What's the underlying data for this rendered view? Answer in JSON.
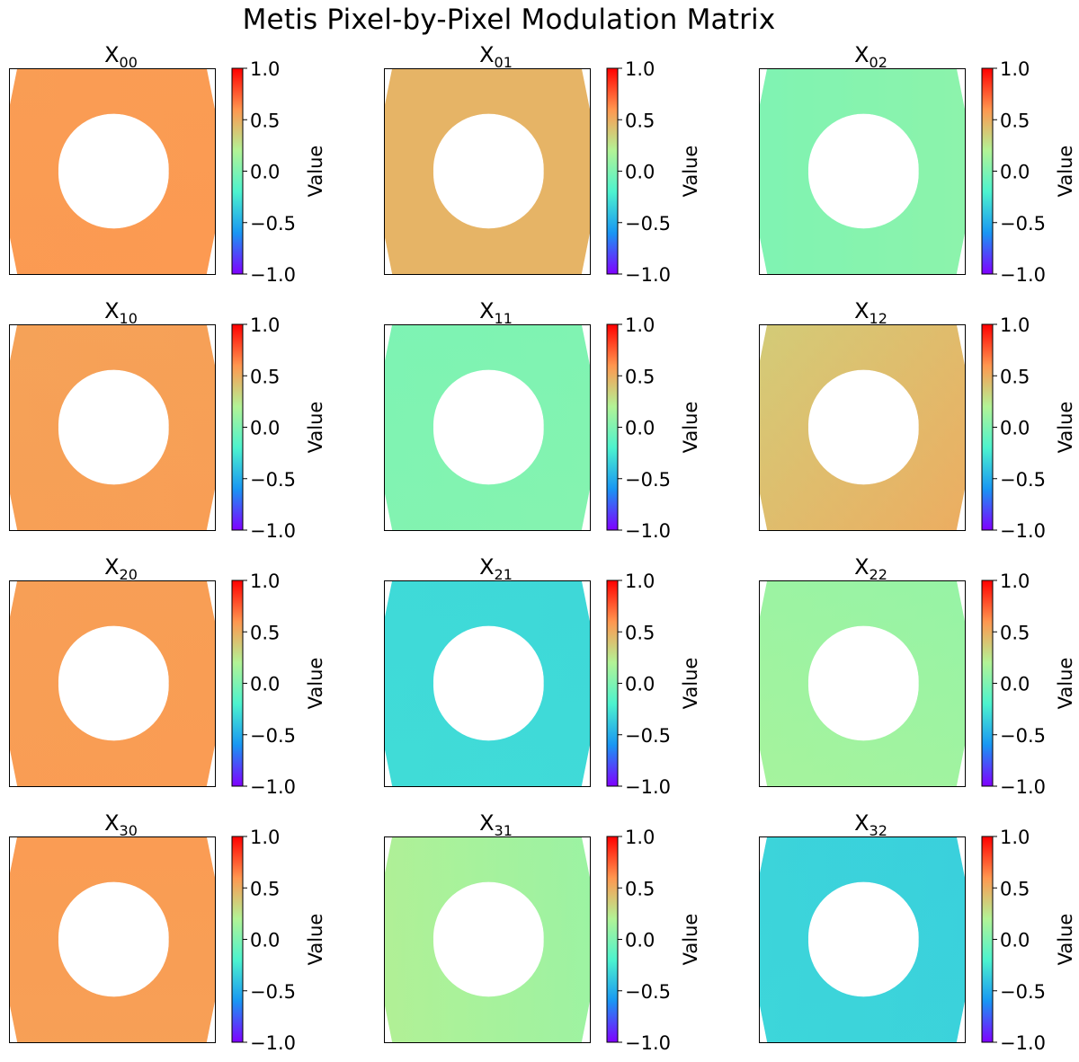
{
  "figure": {
    "title": "Metis Pixel-by-Pixel Modulation Matrix"
  },
  "colors": {
    "colormap": "rainbow",
    "colormap_stops": [
      "#8000ff",
      "#1996f3",
      "#4df3ce",
      "#b2f396",
      "#ff964f",
      "#ff0000"
    ],
    "frame": "#000000",
    "background": "#ffffff"
  },
  "chart_data": [
    {
      "type": "heatmap",
      "base": "X",
      "subscript": "00",
      "title": "X00",
      "colorbar_label": "Value",
      "vmin": -1.0,
      "vmax": 1.0,
      "colorbar_ticks": [
        "1.0",
        "0.5",
        "0.0",
        "−0.5",
        "−1.0"
      ],
      "approx_values": {
        "top": 0.57,
        "right": 0.58,
        "bottom": 0.59,
        "left": 0.57
      }
    },
    {
      "type": "heatmap",
      "base": "X",
      "subscript": "01",
      "title": "X01",
      "colorbar_label": "Value",
      "vmin": -1.0,
      "vmax": 1.0,
      "colorbar_ticks": [
        "1.0",
        "0.5",
        "0.0",
        "−0.5",
        "−1.0"
      ],
      "approx_values": {
        "top": 0.42,
        "right": 0.52,
        "bottom": 0.42,
        "left": 0.52
      }
    },
    {
      "type": "heatmap",
      "base": "X",
      "subscript": "02",
      "title": "X02",
      "colorbar_label": "Value",
      "vmin": -1.0,
      "vmax": 1.0,
      "colorbar_ticks": [
        "1.0",
        "0.5",
        "0.0",
        "−0.5",
        "−1.0"
      ],
      "approx_values": {
        "top": 0.12,
        "right": -0.02,
        "bottom": 0.12,
        "left": -0.12
      }
    },
    {
      "type": "heatmap",
      "base": "X",
      "subscript": "10",
      "title": "X10",
      "colorbar_label": "Value",
      "vmin": -1.0,
      "vmax": 1.0,
      "colorbar_ticks": [
        "1.0",
        "0.5",
        "0.0",
        "−0.5",
        "−1.0"
      ],
      "approx_values": {
        "top": 0.55,
        "right": 0.56,
        "bottom": 0.57,
        "left": 0.55
      }
    },
    {
      "type": "heatmap",
      "base": "X",
      "subscript": "11",
      "title": "X11",
      "colorbar_label": "Value",
      "vmin": -1.0,
      "vmax": 1.0,
      "colorbar_ticks": [
        "1.0",
        "0.5",
        "0.0",
        "−0.5",
        "−1.0"
      ],
      "approx_values": {
        "top": 0.02,
        "right": -0.02,
        "bottom": 0.06,
        "left": -0.04
      }
    },
    {
      "type": "heatmap",
      "base": "X",
      "subscript": "12",
      "title": "X12",
      "colorbar_label": "Value",
      "vmin": -1.0,
      "vmax": 1.0,
      "colorbar_ticks": [
        "1.0",
        "0.5",
        "0.0",
        "−0.5",
        "−1.0"
      ],
      "approx_values": {
        "top": 0.38,
        "right": 0.5,
        "bottom": 0.5,
        "left": 0.36
      }
    },
    {
      "type": "heatmap",
      "base": "X",
      "subscript": "20",
      "title": "X20",
      "colorbar_label": "Value",
      "vmin": -1.0,
      "vmax": 1.0,
      "colorbar_ticks": [
        "1.0",
        "0.5",
        "0.0",
        "−0.5",
        "−1.0"
      ],
      "approx_values": {
        "top": 0.56,
        "right": 0.57,
        "bottom": 0.58,
        "left": 0.56
      }
    },
    {
      "type": "heatmap",
      "base": "X",
      "subscript": "21",
      "title": "X21",
      "colorbar_label": "Value",
      "vmin": -1.0,
      "vmax": 1.0,
      "colorbar_ticks": [
        "1.0",
        "0.5",
        "0.0",
        "−0.5",
        "−1.0"
      ],
      "approx_values": {
        "top": -0.32,
        "right": -0.31,
        "bottom": -0.3,
        "left": -0.3
      }
    },
    {
      "type": "heatmap",
      "base": "X",
      "subscript": "22",
      "title": "X22",
      "colorbar_label": "Value",
      "vmin": -1.0,
      "vmax": 1.0,
      "colorbar_ticks": [
        "1.0",
        "0.5",
        "0.0",
        "−0.5",
        "−1.0"
      ],
      "approx_values": {
        "top": 0.08,
        "right": 0.1,
        "bottom": 0.16,
        "left": 0.14
      }
    },
    {
      "type": "heatmap",
      "base": "X",
      "subscript": "30",
      "title": "X30",
      "colorbar_label": "Value",
      "vmin": -1.0,
      "vmax": 1.0,
      "colorbar_ticks": [
        "1.0",
        "0.5",
        "0.0",
        "−0.5",
        "−1.0"
      ],
      "approx_values": {
        "top": 0.58,
        "right": 0.57,
        "bottom": 0.55,
        "left": 0.57
      }
    },
    {
      "type": "heatmap",
      "base": "X",
      "subscript": "31",
      "title": "X31",
      "colorbar_label": "Value",
      "vmin": -1.0,
      "vmax": 1.0,
      "colorbar_ticks": [
        "1.0",
        "0.5",
        "0.0",
        "−0.5",
        "−1.0"
      ],
      "approx_values": {
        "top": 0.16,
        "right": 0.06,
        "bottom": 0.18,
        "left": 0.22
      }
    },
    {
      "type": "heatmap",
      "base": "X",
      "subscript": "32",
      "title": "X32",
      "colorbar_label": "Value",
      "vmin": -1.0,
      "vmax": 1.0,
      "colorbar_ticks": [
        "1.0",
        "0.5",
        "0.0",
        "−0.5",
        "−1.0"
      ],
      "approx_values": {
        "top": -0.32,
        "right": -0.38,
        "bottom": -0.3,
        "left": -0.35
      }
    }
  ]
}
